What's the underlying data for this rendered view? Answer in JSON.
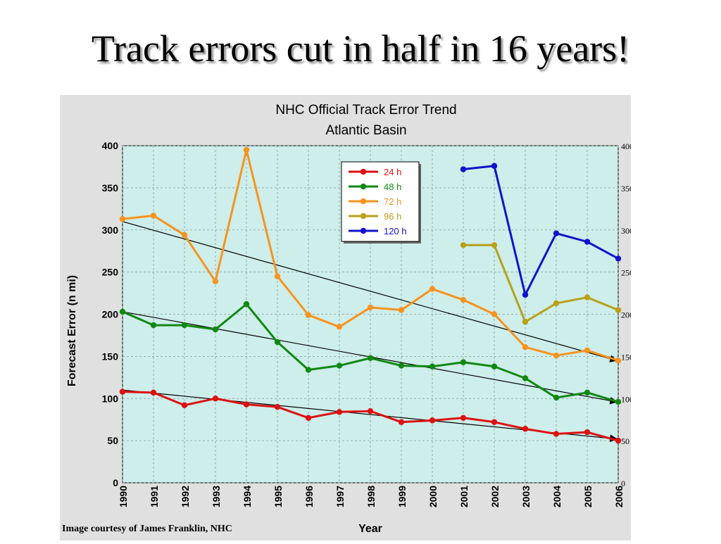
{
  "slide": {
    "title": "Track errors cut in half in 16 years!",
    "credit": "Image courtesy of James Franklin, NHC"
  },
  "colors": {
    "plot_background": "#cdeeea",
    "panel_background": "#e0e0e0",
    "24 h": "#dd1111",
    "48 h": "#118811",
    "72 h": "#f7931e",
    "96 h": "#b8a01a",
    "120 h": "#1111cc",
    "trend": "#000000"
  },
  "chart_data": {
    "type": "line",
    "title": "NHC Official Track Error Trend",
    "subtitle": "Atlantic Basin",
    "xlabel": "Year",
    "ylabel": "Forecast Error (n mi)",
    "x": [
      1990,
      1991,
      1992,
      1993,
      1994,
      1995,
      1996,
      1997,
      1998,
      1999,
      2000,
      2001,
      2002,
      2003,
      2004,
      2005,
      2006
    ],
    "xlim": [
      1990,
      2006
    ],
    "ylim": [
      0,
      400
    ],
    "yticks": [
      0,
      50,
      100,
      150,
      200,
      250,
      300,
      350,
      400
    ],
    "grid": true,
    "legend_position": "top-center",
    "series": [
      {
        "name": "24 h",
        "x": [
          1990,
          1991,
          1992,
          1993,
          1994,
          1995,
          1996,
          1997,
          1998,
          1999,
          2000,
          2001,
          2002,
          2003,
          2004,
          2005,
          2006
        ],
        "values": [
          108,
          107,
          92,
          100,
          93,
          90,
          77,
          84,
          85,
          72,
          74,
          77,
          72,
          64,
          58,
          60,
          50
        ]
      },
      {
        "name": "48 h",
        "x": [
          1990,
          1991,
          1992,
          1993,
          1994,
          1995,
          1996,
          1997,
          1998,
          1999,
          2000,
          2001,
          2002,
          2003,
          2004,
          2005,
          2006
        ],
        "values": [
          203,
          187,
          187,
          182,
          212,
          167,
          134,
          139,
          148,
          139,
          138,
          143,
          138,
          124,
          101,
          107,
          96
        ]
      },
      {
        "name": "72 h",
        "x": [
          1990,
          1991,
          1992,
          1993,
          1994,
          1995,
          1996,
          1997,
          1998,
          1999,
          2000,
          2001,
          2002,
          2003,
          2004,
          2005,
          2006
        ],
        "values": [
          313,
          317,
          294,
          239,
          395,
          245,
          199,
          185,
          208,
          205,
          230,
          217,
          200,
          161,
          151,
          157,
          145
        ]
      },
      {
        "name": "96 h",
        "x": [
          2001,
          2002,
          2003,
          2004,
          2005,
          2006
        ],
        "values": [
          282,
          282,
          191,
          213,
          220,
          205
        ]
      },
      {
        "name": "120 h",
        "x": [
          2001,
          2002,
          2003,
          2004,
          2005,
          2006
        ],
        "values": [
          372,
          376,
          223,
          296,
          286,
          266
        ]
      }
    ],
    "trend_lines": [
      {
        "for": "72 h",
        "x": [
          1990,
          2006
        ],
        "values": [
          310,
          145
        ]
      },
      {
        "for": "48 h",
        "x": [
          1990,
          2006
        ],
        "values": [
          203,
          96
        ]
      },
      {
        "for": "24 h",
        "x": [
          1990,
          2006
        ],
        "values": [
          110,
          52
        ]
      }
    ]
  }
}
